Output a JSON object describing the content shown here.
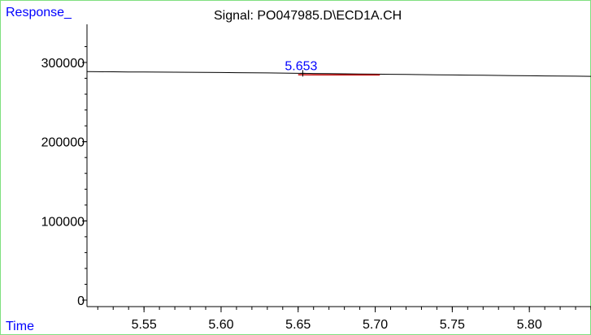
{
  "chart_data": {
    "type": "line",
    "title": "Signal: PO047985.D\\ECD1A.CH",
    "ylabel": "Response_",
    "xlabel": "Time",
    "xlim": [
      5.513,
      5.84
    ],
    "ylim": [
      0,
      330000
    ],
    "yticks": [
      0,
      100000,
      200000,
      300000
    ],
    "ytick_labels": [
      "0",
      "100000",
      "200000",
      "300000"
    ],
    "xticks": [
      5.55,
      5.6,
      5.65,
      5.7,
      5.75,
      5.8
    ],
    "xtick_labels": [
      "5.55",
      "5.60",
      "5.65",
      "5.70",
      "5.75",
      "5.80"
    ],
    "series": [
      {
        "color": "#000000",
        "x": [
          5.513,
          5.52,
          5.53,
          5.54,
          5.55,
          5.56,
          5.57,
          5.58,
          5.59,
          5.6,
          5.61,
          5.62,
          5.63,
          5.64,
          5.65,
          5.66,
          5.67,
          5.68,
          5.69,
          5.7,
          5.71,
          5.72,
          5.73,
          5.74,
          5.75,
          5.76,
          5.77,
          5.78,
          5.79,
          5.8,
          5.81,
          5.82,
          5.83,
          5.84
        ],
        "y": [
          288500,
          288300,
          288200,
          288000,
          287900,
          287800,
          287700,
          287600,
          287500,
          287300,
          287100,
          287000,
          286800,
          286600,
          286300,
          286100,
          285900,
          285700,
          285500,
          285300,
          285000,
          284800,
          284600,
          284400,
          284200,
          284000,
          283800,
          283600,
          283400,
          283200,
          283000,
          282900,
          282700,
          282500
        ]
      }
    ],
    "baseline": {
      "color": "#c00000",
      "x": [
        5.65,
        5.703
      ],
      "y": [
        285500,
        285300
      ]
    },
    "peak": {
      "label": "5.653",
      "x": 5.653,
      "y": 286300,
      "label_color": "#0000ff"
    }
  }
}
